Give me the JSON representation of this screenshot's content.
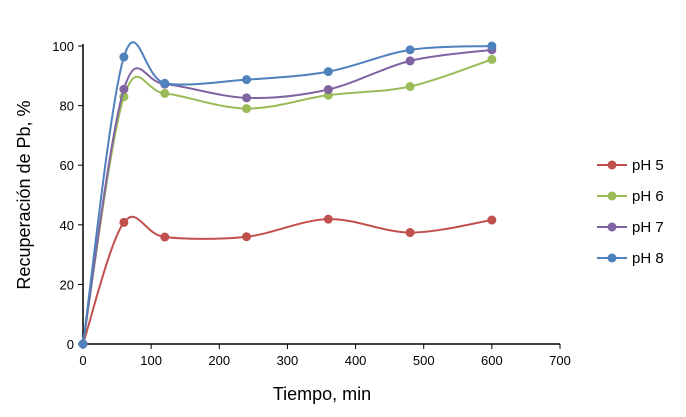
{
  "chart_data": {
    "type": "line",
    "xlabel": "Tiempo, min",
    "ylabel": "Recuperación de Pb, %",
    "xlim": [
      0,
      700
    ],
    "ylim": [
      0,
      100
    ],
    "xticks": [
      0,
      100,
      200,
      300,
      400,
      500,
      600,
      700
    ],
    "yticks": [
      0,
      20,
      40,
      60,
      80,
      100
    ],
    "grid": false,
    "smooth": true,
    "legend_position": "right",
    "x": [
      0,
      60,
      120,
      240,
      360,
      480,
      600
    ],
    "series": [
      {
        "name": "pH 5",
        "color": "#C0504D",
        "values": [
          0,
          40.8,
          35.9,
          36.0,
          41.9,
          37.4,
          41.6
        ]
      },
      {
        "name": "pH 6",
        "color": "#9BBB59",
        "values": [
          0,
          83.0,
          84.1,
          79.0,
          83.5,
          86.4,
          95.5
        ]
      },
      {
        "name": "pH 7",
        "color": "#8064A2",
        "values": [
          0,
          85.5,
          87.2,
          82.6,
          85.4,
          95.0,
          98.7
        ]
      },
      {
        "name": "pH 8",
        "color": "#4F81BD",
        "values": [
          0,
          96.3,
          87.5,
          88.7,
          91.4,
          98.7,
          100
        ]
      }
    ]
  }
}
